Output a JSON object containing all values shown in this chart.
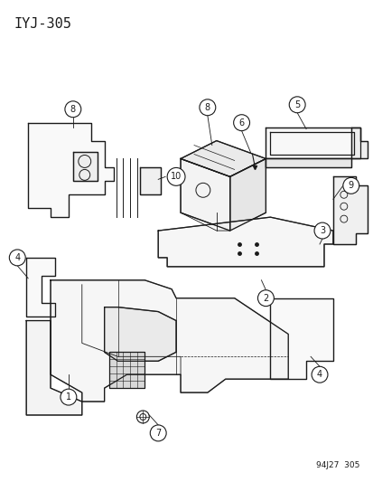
{
  "title": "IYJ-305",
  "footer": "94J27  305",
  "bg_color": "#ffffff",
  "line_color": "#1a1a1a",
  "title_fontsize": 11,
  "footer_fontsize": 6.5,
  "label_fontsize": 7,
  "fig_w": 4.14,
  "fig_h": 5.33,
  "dpi": 100
}
